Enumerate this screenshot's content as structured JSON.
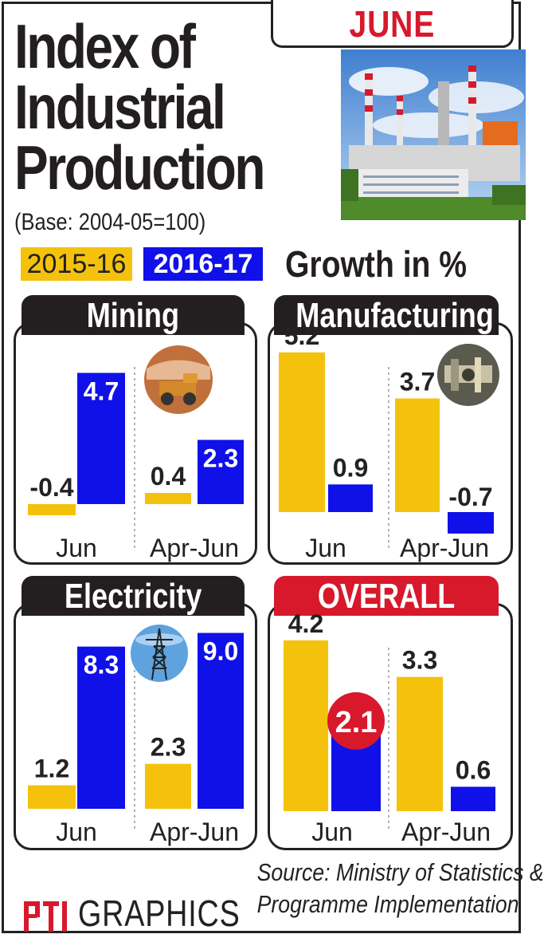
{
  "header": {
    "title_line1": "Index of",
    "title_line2": "Industrial",
    "title_line3": "Production",
    "month": "JUNE",
    "base": "(Base: 2004-05=100)",
    "growth_label": "Growth in %"
  },
  "legend": {
    "series_a": "2015-16",
    "series_b": "2016-17"
  },
  "colors": {
    "series_a": "#f4c20d",
    "series_b": "#1010e8",
    "accent_red": "#d7192b",
    "dark": "#231f20"
  },
  "icons": {
    "mining": "mining-truck-photo-icon",
    "manufacturing": "machinery-photo-icon",
    "electricity": "power-tower-photo-icon",
    "header": "industrial-plant-photo"
  },
  "chart_data": [
    {
      "type": "bar",
      "title": "Mining",
      "categories": [
        "Jun",
        "Apr-Jun"
      ],
      "series": [
        {
          "name": "2015-16",
          "values": [
            -0.4,
            0.4
          ]
        },
        {
          "name": "2016-17",
          "values": [
            4.7,
            2.3
          ]
        }
      ],
      "value_labels": [
        [
          "-0.4",
          "0.4"
        ],
        [
          "4.7",
          "2.3"
        ]
      ]
    },
    {
      "type": "bar",
      "title": "Manufacturing",
      "categories": [
        "Jun",
        "Apr-Jun"
      ],
      "series": [
        {
          "name": "2015-16",
          "values": [
            5.2,
            3.7
          ]
        },
        {
          "name": "2016-17",
          "values": [
            0.9,
            -0.7
          ]
        }
      ],
      "value_labels": [
        [
          "5.2",
          "3.7"
        ],
        [
          "0.9",
          "-0.7"
        ]
      ]
    },
    {
      "type": "bar",
      "title": "Electricity",
      "categories": [
        "Jun",
        "Apr-Jun"
      ],
      "series": [
        {
          "name": "2015-16",
          "values": [
            1.2,
            2.3
          ]
        },
        {
          "name": "2016-17",
          "values": [
            8.3,
            9.0
          ]
        }
      ],
      "value_labels": [
        [
          "1.2",
          "2.3"
        ],
        [
          "8.3",
          "9.0"
        ]
      ]
    },
    {
      "type": "bar",
      "title": "OVERALL",
      "categories": [
        "Jun",
        "Apr-Jun"
      ],
      "series": [
        {
          "name": "2015-16",
          "values": [
            4.2,
            3.3
          ]
        },
        {
          "name": "2016-17",
          "values": [
            2.1,
            0.6
          ]
        }
      ],
      "value_labels": [
        [
          "4.2",
          "3.3"
        ],
        [
          "2.1",
          "0.6"
        ]
      ]
    }
  ],
  "footer": {
    "source_line1": "Source: Ministry of Statistics &",
    "source_line2": "Programme Implementation",
    "logo_text": "PTI",
    "brand": "GRAPHICS"
  }
}
